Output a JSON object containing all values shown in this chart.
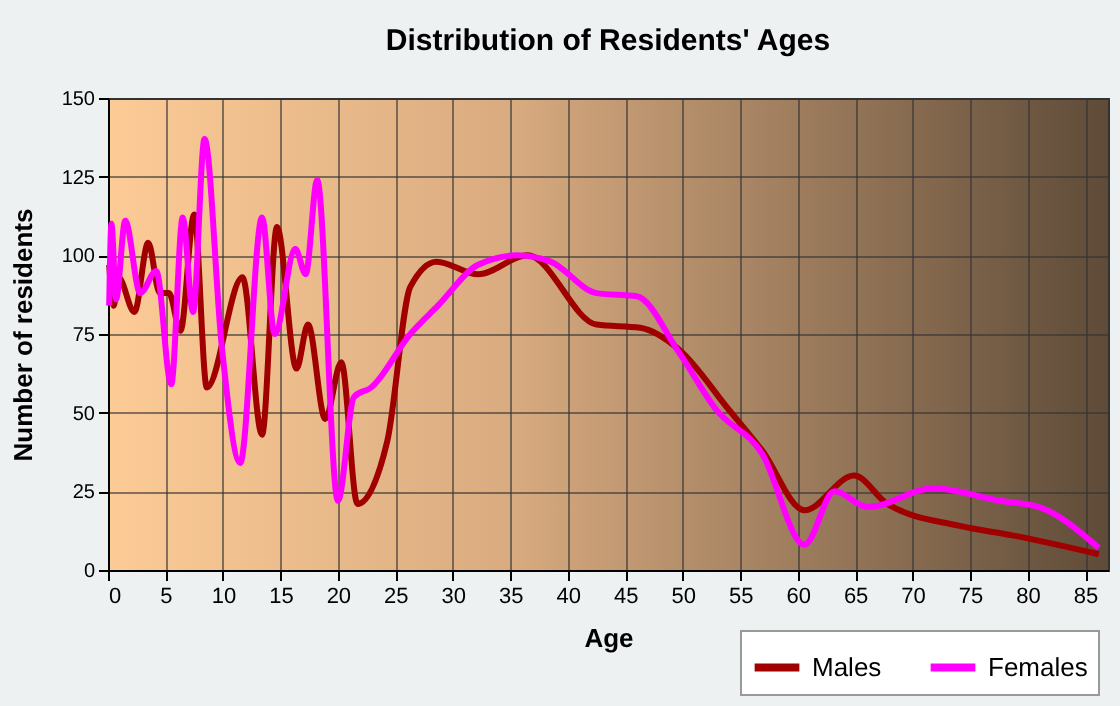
{
  "chart_data": {
    "type": "line",
    "title": "Distribution of Residents' Ages",
    "xlabel": "Age",
    "ylabel": "Number of residents",
    "xlim": [
      0,
      87
    ],
    "xticks": [
      0,
      5,
      10,
      15,
      20,
      25,
      30,
      35,
      40,
      45,
      50,
      55,
      60,
      65,
      70,
      75,
      80,
      85
    ],
    "ylim": [
      0,
      150
    ],
    "yticks": [
      0,
      25,
      50,
      75,
      100,
      125,
      150
    ],
    "grid": true,
    "legend": "bottom right",
    "series": [
      {
        "name": "Males",
        "color": "#a00000",
        "x": [
          0.1,
          0.5,
          0.9,
          2.3,
          3.5,
          4.5,
          5.3,
          6.3,
          7.5,
          8.6,
          11.7,
          13.4,
          14.7,
          16.4,
          17.4,
          18.9,
          20.3,
          21.7,
          24.3,
          26.3,
          28.6,
          32.2,
          36.5,
          42.5,
          46.3,
          49.7,
          54,
          56.9,
          60.6,
          64.9,
          67.8,
          74.1,
          78.7,
          86.2
        ],
        "values": [
          97,
          84,
          93,
          82,
          104,
          88,
          88,
          76,
          113,
          58,
          93,
          43,
          109,
          64,
          78,
          48,
          66,
          21,
          41,
          90,
          98,
          94,
          100,
          78,
          77,
          70,
          51,
          38,
          19,
          30,
          21,
          14,
          11,
          5
        ]
      },
      {
        "name": "Females",
        "color": "#ff00ff",
        "x": [
          0.1,
          0.3,
          0.7,
          1.5,
          2.8,
          4.2,
          5.5,
          6.5,
          7.4,
          8.4,
          9.9,
          11.5,
          13.4,
          14.5,
          16.3,
          17.2,
          18.2,
          20,
          21.4,
          22.9,
          26.3,
          28.7,
          32.2,
          35.6,
          38.5,
          42.5,
          46,
          49.7,
          52.9,
          56.9,
          60.6,
          63.2,
          66.1,
          71.8,
          77.6,
          81,
          86.2
        ],
        "values": [
          84,
          110,
          86,
          111,
          88,
          95,
          59,
          112,
          82,
          137,
          71,
          34,
          112,
          75,
          102,
          94,
          124,
          22,
          55,
          58,
          75,
          84,
          97,
          100,
          98,
          88,
          87,
          69,
          51,
          37,
          8,
          25,
          20,
          26,
          22,
          20,
          7
        ]
      }
    ]
  }
}
